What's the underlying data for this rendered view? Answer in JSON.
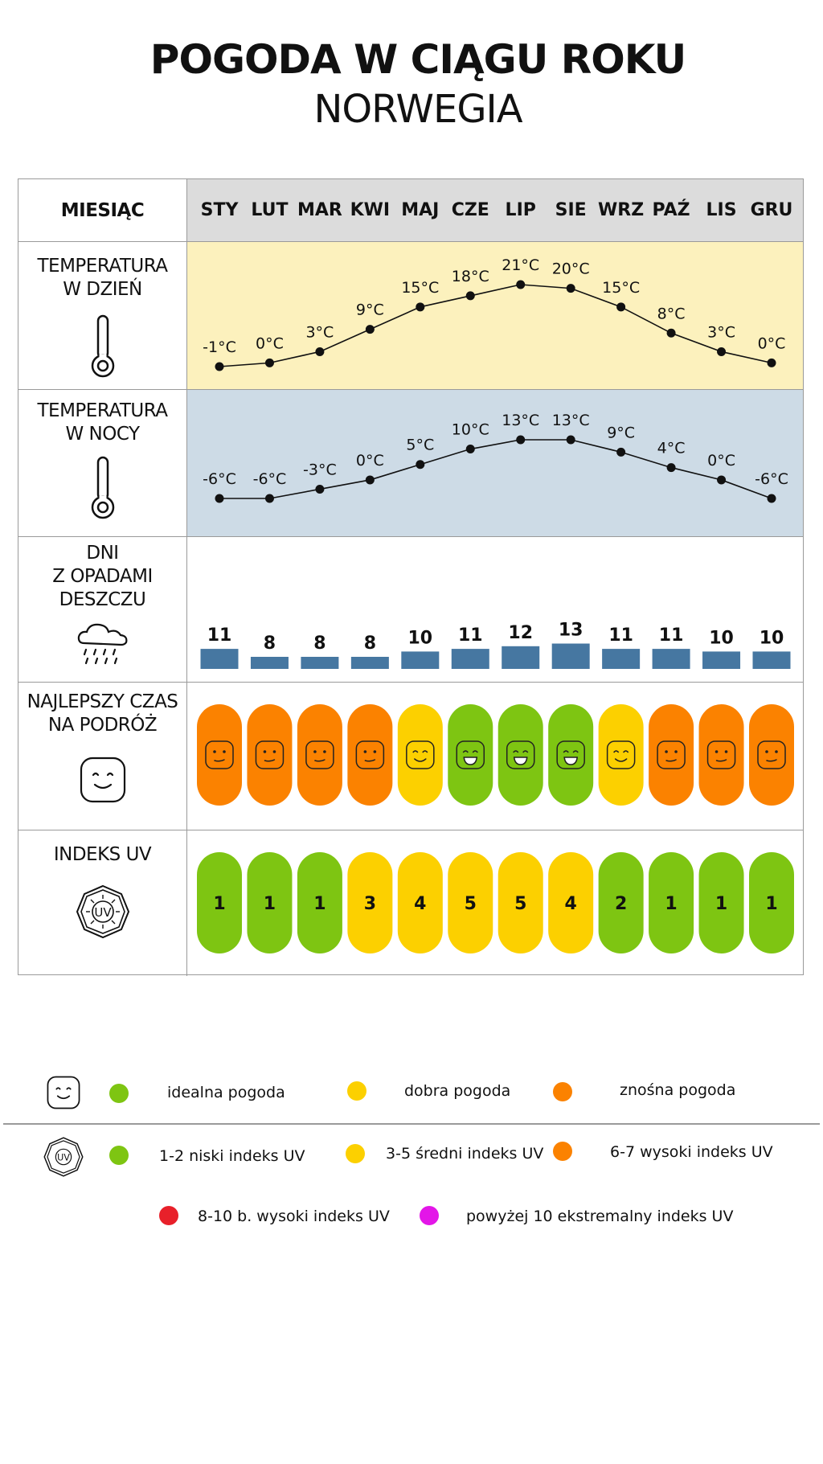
{
  "title": "POGODA W CIĄGU ROKU",
  "subtitle": "NORWEGIA",
  "header_label": "MIESIĄC",
  "months": [
    "STY",
    "LUT",
    "MAR",
    "KWI",
    "MAJ",
    "CZE",
    "LIP",
    "SIE",
    "WRZ",
    "PAŹ",
    "LIS",
    "GRU"
  ],
  "rows": {
    "day_temp": {
      "label": "TEMPERATURA\nW DZIEŃ",
      "icon": "thermometer-icon"
    },
    "night_temp": {
      "label": "TEMPERATURA\nW NOCY",
      "icon": "thermometer-icon"
    },
    "rain_days": {
      "label": "DNI\nZ OPADAMI\nDESZCZU",
      "icon": "rain-cloud-icon"
    },
    "best_time": {
      "label": "NAJLEPSZY CZAS\nNA PODRÓŻ",
      "icon": "smiley-icon"
    },
    "uv_index": {
      "label": "INDEKS UV",
      "icon": "uv-badge-icon"
    }
  },
  "colors": {
    "header_bg": "#dcdcdc",
    "day_bg": "#fcf1bd",
    "night_bg": "#cddbe6",
    "bar": "#4677a1",
    "ideal": "#7ec512",
    "good": "#fcd000",
    "tolerable": "#fb8200",
    "uv_very_high": "#e8202a",
    "uv_extreme": "#e316e8"
  },
  "chart_data": {
    "type": "table",
    "categories": [
      "STY",
      "LUT",
      "MAR",
      "KWI",
      "MAJ",
      "CZE",
      "LIP",
      "SIE",
      "WRZ",
      "PAŹ",
      "LIS",
      "GRU"
    ],
    "series": [
      {
        "name": "TEMPERATURA W DZIEŃ",
        "type": "line",
        "unit": "°C",
        "values": [
          -1,
          0,
          3,
          9,
          15,
          18,
          21,
          20,
          15,
          8,
          3,
          0
        ]
      },
      {
        "name": "TEMPERATURA W NOCY",
        "type": "line",
        "unit": "°C",
        "values": [
          -6,
          -6,
          -3,
          0,
          5,
          10,
          13,
          13,
          9,
          4,
          0,
          -6
        ]
      },
      {
        "name": "DNI Z OPADAMI DESZCZU",
        "type": "bar",
        "values": [
          11,
          8,
          8,
          8,
          10,
          11,
          12,
          13,
          11,
          11,
          10,
          10
        ]
      },
      {
        "name": "NAJLEPSZY CZAS NA PODRÓŻ",
        "type": "category",
        "values": [
          "tolerable",
          "tolerable",
          "tolerable",
          "tolerable",
          "good",
          "ideal",
          "ideal",
          "ideal",
          "good",
          "tolerable",
          "tolerable",
          "tolerable"
        ]
      },
      {
        "name": "INDEKS UV",
        "type": "category",
        "values": [
          1,
          1,
          1,
          3,
          4,
          5,
          5,
          4,
          2,
          1,
          1,
          1
        ]
      }
    ]
  },
  "legend": {
    "weather": [
      {
        "label": "idealna pogoda",
        "color": "#7ec512"
      },
      {
        "label": "dobra pogoda",
        "color": "#fcd000"
      },
      {
        "label": "znośna pogoda",
        "color": "#fb8200"
      }
    ],
    "uv": [
      {
        "label": "1-2 niski indeks UV",
        "color": "#7ec512"
      },
      {
        "label": "3-5 średni indeks UV",
        "color": "#fcd000"
      },
      {
        "label": "6-7 wysoki indeks UV",
        "color": "#fb8200"
      },
      {
        "label": "8-10 b. wysoki indeks UV",
        "color": "#e8202a"
      },
      {
        "label": "powyżej 10 ekstremalny indeks UV",
        "color": "#e316e8"
      }
    ]
  }
}
